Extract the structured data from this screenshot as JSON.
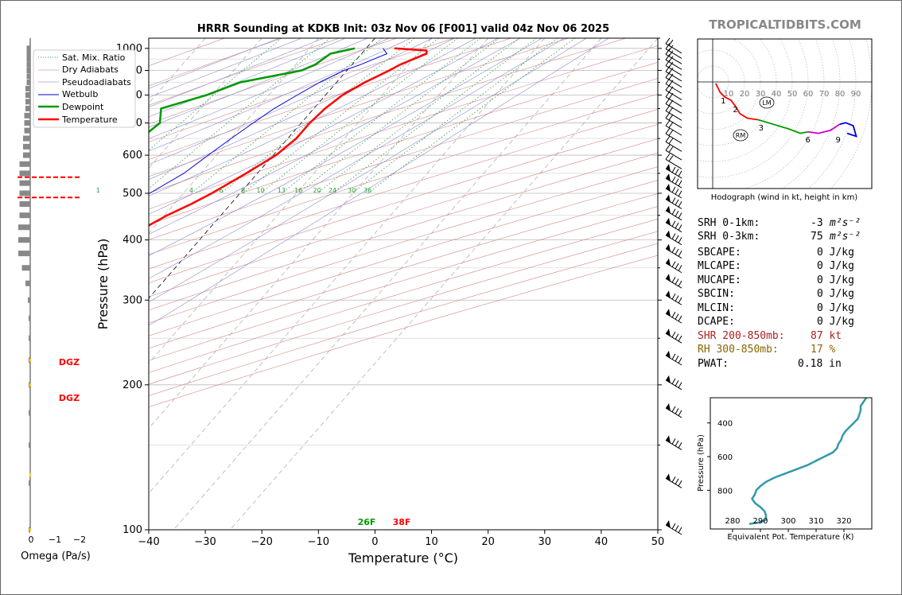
{
  "title": "HRRR Sounding at KDKB Init: 03z Nov 06 [F001] valid 04z Nov 06 2025",
  "brand": "TROPICALTIDBITS.COM",
  "colors": {
    "temperature": "#ff0000",
    "dewpoint": "#009900",
    "wetbulb": "#0000dd",
    "storm_motion": "#cc00cc",
    "shr": "#aa2222",
    "rh": "#886600",
    "theta_e": "#3399aa"
  },
  "chart_data": [
    {
      "type": "line",
      "name": "skew-t",
      "xlabel": "Temperature (°C)",
      "ylabel": "Pressure (hPa)",
      "xlim": [
        -40,
        50
      ],
      "ylim": [
        1050,
        100
      ],
      "y_scale": "log",
      "x_ticks": [
        "−40",
        "−30",
        "−20",
        "−10",
        "0",
        "10",
        "20",
        "30",
        "40",
        "50"
      ],
      "y_ticks": [
        "100",
        "200",
        "300",
        "400",
        "500",
        "600",
        "700",
        "800",
        "900",
        "1000"
      ],
      "legend": [
        "Sat. Mix. Ratio",
        "Dry Adiabats",
        "Pseudoadiabats",
        "Wetbulb",
        "Dewpoint",
        "Temperature"
      ],
      "legend_position": "top-left",
      "mixing_ratio_labels": [
        "1",
        "4",
        "6",
        "8",
        "10",
        "13",
        "16",
        "20",
        "24",
        "30",
        "36"
      ],
      "surface_labels": {
        "dewpoint": "26F",
        "temperature": "38F"
      },
      "series": [
        {
          "name": "Temperature",
          "points": [
            [
              1000,
              5
            ],
            [
              990,
              11
            ],
            [
              975,
              11.5
            ],
            [
              950,
              10
            ],
            [
              925,
              8.5
            ],
            [
              900,
              7.5
            ],
            [
              850,
              5
            ],
            [
              800,
              3
            ],
            [
              750,
              2
            ],
            [
              700,
              1.5
            ],
            [
              650,
              1.5
            ],
            [
              600,
              0.5
            ],
            [
              550,
              -2
            ],
            [
              500,
              -5
            ],
            [
              475,
              -7
            ],
            [
              450,
              -9.5
            ],
            [
              425,
              -11.5
            ],
            [
              400,
              -13
            ],
            [
              375,
              -15
            ],
            [
              350,
              -17.5
            ],
            [
              325,
              -20.5
            ],
            [
              300,
              -24
            ],
            [
              275,
              -28.5
            ],
            [
              250,
              -33.5
            ],
            [
              225,
              -39
            ],
            [
              200,
              -44
            ],
            [
              180,
              -48.5
            ],
            [
              160,
              -54
            ],
            [
              140,
              -61
            ],
            [
              120,
              -68
            ],
            [
              100,
              -73
            ]
          ]
        },
        {
          "name": "Dewpoint",
          "points": [
            [
              1000,
              -2
            ],
            [
              975,
              -5.5
            ],
            [
              950,
              -6
            ],
            [
              925,
              -6.5
            ],
            [
              900,
              -8
            ],
            [
              850,
              -17
            ],
            [
              800,
              -21
            ],
            [
              750,
              -27
            ],
            [
              700,
              -25
            ],
            [
              650,
              -26
            ],
            [
              600,
              -27.5
            ],
            [
              550,
              -29.5
            ],
            [
              500,
              -29
            ],
            [
              475,
              -26
            ],
            [
              450,
              -22
            ],
            [
              425,
              -19.5
            ],
            [
              400,
              -19.5
            ],
            [
              375,
              -21
            ],
            [
              350,
              -26
            ],
            [
              325,
              -31.5
            ],
            [
              300,
              -36.5
            ],
            [
              280,
              -40
            ],
            [
              260,
              -41
            ],
            [
              240,
              -44
            ],
            [
              220,
              -48
            ],
            [
              200,
              -52
            ],
            [
              180,
              -55
            ],
            [
              160,
              -61
            ],
            [
              140,
              -69
            ],
            [
              120,
              -78
            ],
            [
              100,
              -82
            ]
          ]
        },
        {
          "name": "Wetbulb",
          "points": [
            [
              1000,
              3
            ],
            [
              975,
              4.5
            ],
            [
              950,
              3
            ],
            [
              925,
              1.5
            ],
            [
              900,
              -0.5
            ],
            [
              850,
              -3
            ],
            [
              800,
              -5
            ],
            [
              750,
              -7
            ],
            [
              700,
              -8.5
            ],
            [
              650,
              -10
            ],
            [
              600,
              -11.5
            ],
            [
              550,
              -13
            ],
            [
              500,
              -16
            ],
            [
              475,
              -17.5
            ],
            [
              450,
              -19
            ],
            [
              425,
              -19.5
            ],
            [
              400,
              -20.5
            ],
            [
              375,
              -22.5
            ],
            [
              350,
              -25
            ],
            [
              325,
              -28
            ],
            [
              300,
              -31.5
            ],
            [
              280,
              -35
            ],
            [
              260,
              -38
            ],
            [
              250,
              -40
            ]
          ]
        }
      ]
    },
    {
      "type": "line",
      "name": "hodograph",
      "xlabel": "Hodograph (wind in kt, height in km)",
      "ring_labels": [
        "10",
        "20",
        "30",
        "40",
        "50",
        "60",
        "70",
        "80",
        "90"
      ],
      "height_markers": [
        "1",
        "2",
        "3",
        "6",
        "9"
      ],
      "motion_markers": [
        "LM",
        "RM"
      ],
      "series": [
        {
          "name": "0-3 km",
          "color": "#ff0000",
          "points": [
            [
              2,
              -1
            ],
            [
              5,
              -7
            ],
            [
              8,
              -10
            ],
            [
              12,
              -12
            ],
            [
              15,
              -16
            ],
            [
              18,
              -21
            ],
            [
              23,
              -24
            ],
            [
              30,
              -25
            ]
          ]
        },
        {
          "name": "3-6 km",
          "color": "#009900",
          "points": [
            [
              30,
              -25
            ],
            [
              40,
              -28
            ],
            [
              50,
              -31
            ],
            [
              58,
              -34
            ],
            [
              63,
              -33
            ]
          ]
        },
        {
          "name": "6-9 km",
          "color": "#cc00cc",
          "points": [
            [
              63,
              -33
            ],
            [
              70,
              -34
            ],
            [
              78,
              -32
            ],
            [
              84,
              -28
            ]
          ]
        },
        {
          "name": "9+ km",
          "color": "#0000dd",
          "points": [
            [
              84,
              -28
            ],
            [
              88,
              -27
            ],
            [
              93,
              -29
            ],
            [
              95,
              -36
            ],
            [
              89,
              -34
            ]
          ]
        }
      ]
    },
    {
      "type": "line",
      "name": "equivalent-potential-temperature",
      "xlabel": "Equivalent Pot. Temperature (K)",
      "ylabel": "Pressure (hPa)",
      "xlim": [
        272,
        330
      ],
      "ylim": [
        1030,
        250
      ],
      "x_ticks": [
        "280",
        "290",
        "300",
        "310",
        "320"
      ],
      "y_ticks": [
        "400",
        "600",
        "800"
      ],
      "series": [
        {
          "name": "theta-e",
          "points": [
            [
              1000,
              286
            ],
            [
              990,
              290
            ],
            [
              975,
              292
            ],
            [
              950,
              292
            ],
            [
              925,
              291.5
            ],
            [
              900,
              290
            ],
            [
              875,
              288
            ],
            [
              850,
              287
            ],
            [
              825,
              288
            ],
            [
              800,
              288.5
            ],
            [
              775,
              290
            ],
            [
              750,
              292
            ],
            [
              725,
              295
            ],
            [
              700,
              299
            ],
            [
              675,
              303
            ],
            [
              650,
              307
            ],
            [
              625,
              310
            ],
            [
              600,
              313
            ],
            [
              575,
              316
            ],
            [
              550,
              317.5
            ],
            [
              525,
              318
            ],
            [
              500,
              319
            ],
            [
              475,
              319.5
            ],
            [
              450,
              320.5
            ],
            [
              425,
              322
            ],
            [
              400,
              323.5
            ],
            [
              375,
              325
            ],
            [
              350,
              325.5
            ],
            [
              325,
              326
            ],
            [
              300,
              326
            ],
            [
              275,
              327
            ],
            [
              250,
              328
            ]
          ]
        }
      ]
    },
    {
      "type": "bar",
      "name": "omega",
      "xlabel": "Omega (Pa/s)",
      "x_ticks": [
        "0",
        "−1",
        "−2"
      ],
      "dgz_label": "DGZ",
      "dgz_layer_hpa": [
        490,
        540
      ],
      "values": [
        [
          1000,
          0.15
        ],
        [
          975,
          0.15
        ],
        [
          950,
          0.15
        ],
        [
          925,
          0.15
        ],
        [
          900,
          0.15
        ],
        [
          875,
          0.15
        ],
        [
          850,
          0.15
        ],
        [
          825,
          0.2
        ],
        [
          800,
          0.2
        ],
        [
          775,
          0.2
        ],
        [
          750,
          0.2
        ],
        [
          725,
          0.25
        ],
        [
          700,
          0.25
        ],
        [
          675,
          0.25
        ],
        [
          650,
          0.3
        ],
        [
          625,
          0.3
        ],
        [
          600,
          0.3
        ],
        [
          575,
          0.45
        ],
        [
          550,
          0.45
        ],
        [
          525,
          0.45
        ],
        [
          500,
          0.45
        ],
        [
          475,
          0.45
        ],
        [
          450,
          0.45
        ],
        [
          425,
          0.5
        ],
        [
          400,
          0.5
        ],
        [
          375,
          0.5
        ],
        [
          350,
          0.35
        ],
        [
          325,
          0.2
        ],
        [
          300,
          0.1
        ],
        [
          275,
          0.05
        ],
        [
          250,
          0.05
        ],
        [
          225,
          0.05
        ],
        [
          200,
          0.05
        ],
        [
          175,
          0.05
        ],
        [
          150,
          0.05
        ],
        [
          125,
          0.05
        ],
        [
          100,
          0.05
        ]
      ]
    }
  ],
  "stats": {
    "srh01_label": "SRH 0-1km:",
    "srh01_value": "-3",
    "srh01_unit": "m²s⁻²",
    "srh03_label": "SRH 0-3km:",
    "srh03_value": "75",
    "srh03_unit": "m²s⁻²",
    "sbcape_label": "SBCAPE:",
    "sbcape_value": "0 J/kg",
    "mlcape_label": "MLCAPE:",
    "mlcape_value": "0 J/kg",
    "mucape_label": "MUCAPE:",
    "mucape_value": "0 J/kg",
    "sbcin_label": "SBCIN:",
    "sbcin_value": "0 J/kg",
    "mlcin_label": "MLCIN:",
    "mlcin_value": "0 J/kg",
    "dcape_label": "DCAPE:",
    "dcape_value": "0 J/kg",
    "shr_label": "SHR 200-850mb:",
    "shr_value": "87 kt",
    "rh_label": "RH 300-850mb:",
    "rh_value": "17 %",
    "pwat_label": "PWAT:",
    "pwat_value": "0.18 in"
  }
}
